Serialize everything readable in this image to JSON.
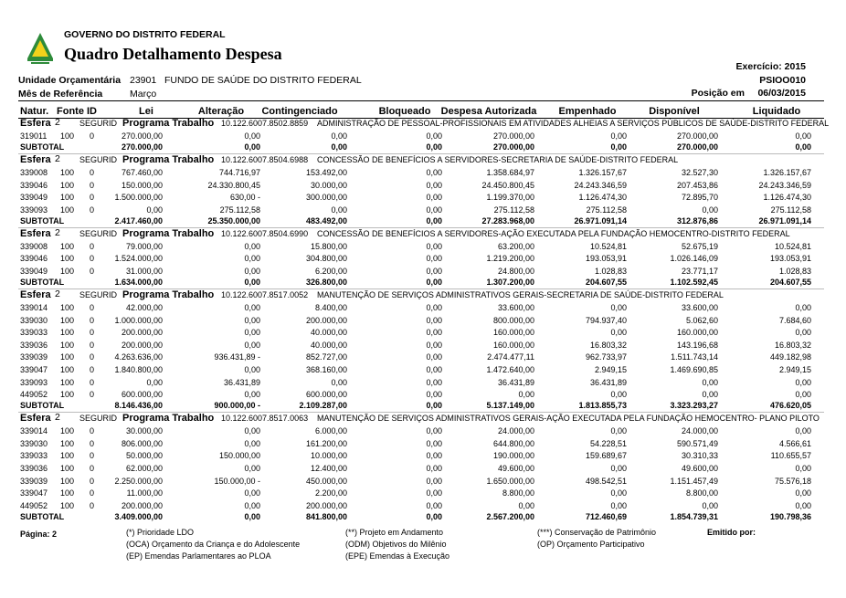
{
  "header": {
    "gov": "GOVERNO DO DISTRITO FEDERAL",
    "title": "Quadro Detalhamento Despesa",
    "exercicio": "Exercício: 2015",
    "codigo": "PSIOO010",
    "posicao_label": "Posição em",
    "posicao": "06/03/2015",
    "unidade_label": "Unidade Orçamentária",
    "unidade_codigo": "23901",
    "unidade_nome": "FUNDO DE SAÚDE DO DISTRITO FEDERAL",
    "mes_label": "Mês de Referência",
    "mes": "Março"
  },
  "columns": [
    "Natur.",
    "Fonte",
    "ID",
    "Lei",
    "Alteração",
    "Contingenciado",
    "Bloqueado",
    "Despesa Autorizada",
    "Empenhado",
    "Disponível",
    "Liquidado"
  ],
  "sections": [
    {
      "esfera_label": "Esfera",
      "esfera": "2",
      "seg": "SEGURID",
      "prog_label": "Programa Trabalho",
      "codigo": "10.122.6007.8502.8859",
      "descricao": "ADMINISTRAÇÃO DE PESSOAL-PROFISSIONAIS EM ATIVIDADES ALHEIAS A SERVIÇOS PÚBLICOS DE SAÚDE-DISTRITO FEDERAL",
      "rows": [
        [
          "319011",
          "100",
          "0",
          "270.000,00",
          "0,00",
          "0,00",
          "0,00",
          "270.000,00",
          "0,00",
          "270.000,00",
          "0,00"
        ]
      ],
      "subtotal": {
        "label": "SUBTOTAL",
        "values": [
          "270.000,00",
          "0,00",
          "0,00",
          "0,00",
          "270.000,00",
          "0,00",
          "270.000,00",
          "0,00"
        ]
      }
    },
    {
      "esfera_label": "Esfera",
      "esfera": "2",
      "seg": "SEGURID",
      "prog_label": "Programa Trabalho",
      "codigo": "10.122.6007.8504.6988",
      "descricao": "CONCESSÃO DE BENEFÍCIOS A SERVIDORES-SECRETARIA DE SAÚDE-DISTRITO FEDERAL",
      "rows": [
        [
          "339008",
          "100",
          "0",
          "767.460,00",
          "744.716,97",
          "153.492,00",
          "0,00",
          "1.358.684,97",
          "1.326.157,67",
          "32.527,30",
          "1.326.157,67"
        ],
        [
          "339046",
          "100",
          "0",
          "150.000,00",
          "24.330.800,45",
          "30.000,00",
          "0,00",
          "24.450.800,45",
          "24.243.346,59",
          "207.453,86",
          "24.243.346,59"
        ],
        [
          "339049",
          "100",
          "0",
          "1.500.000,00",
          "630,00 -",
          "300.000,00",
          "0,00",
          "1.199.370,00",
          "1.126.474,30",
          "72.895,70",
          "1.126.474,30"
        ],
        [
          "339093",
          "100",
          "0",
          "0,00",
          "275.112,58",
          "0,00",
          "0,00",
          "275.112,58",
          "275.112,58",
          "0,00",
          "275.112,58"
        ]
      ],
      "subtotal": {
        "label": "SUBTOTAL",
        "values": [
          "2.417.460,00",
          "25.350.000,00",
          "483.492,00",
          "0,00",
          "27.283.968,00",
          "26.971.091,14",
          "312.876,86",
          "26.971.091,14"
        ]
      }
    },
    {
      "esfera_label": "Esfera",
      "esfera": "2",
      "seg": "SEGURID",
      "prog_label": "Programa Trabalho",
      "codigo": "10.122.6007.8504.6990",
      "descricao": "CONCESSÃO DE BENEFÍCIOS A SERVIDORES-AÇÃO EXECUTADA PELA FUNDAÇÃO HEMOCENTRO-DISTRITO FEDERAL",
      "rows": [
        [
          "339008",
          "100",
          "0",
          "79.000,00",
          "0,00",
          "15.800,00",
          "0,00",
          "63.200,00",
          "10.524,81",
          "52.675,19",
          "10.524,81"
        ],
        [
          "339046",
          "100",
          "0",
          "1.524.000,00",
          "0,00",
          "304.800,00",
          "0,00",
          "1.219.200,00",
          "193.053,91",
          "1.026.146,09",
          "193.053,91"
        ],
        [
          "339049",
          "100",
          "0",
          "31.000,00",
          "0,00",
          "6.200,00",
          "0,00",
          "24.800,00",
          "1.028,83",
          "23.771,17",
          "1.028,83"
        ]
      ],
      "subtotal": {
        "label": "SUBTOTAL",
        "values": [
          "1.634.000,00",
          "0,00",
          "326.800,00",
          "0,00",
          "1.307.200,00",
          "204.607,55",
          "1.102.592,45",
          "204.607,55"
        ]
      }
    },
    {
      "esfera_label": "Esfera",
      "esfera": "2",
      "seg": "SEGURID",
      "prog_label": "Programa Trabalho",
      "codigo": "10.122.6007.8517.0052",
      "descricao": "MANUTENÇÃO DE SERVIÇOS ADMINISTRATIVOS GERAIS-SECRETARIA DE SAÚDE-DISTRITO FEDERAL",
      "rows": [
        [
          "339014",
          "100",
          "0",
          "42.000,00",
          "0,00",
          "8.400,00",
          "0,00",
          "33.600,00",
          "0,00",
          "33.600,00",
          "0,00"
        ],
        [
          "339030",
          "100",
          "0",
          "1.000.000,00",
          "0,00",
          "200.000,00",
          "0,00",
          "800.000,00",
          "794.937,40",
          "5.062,60",
          "7.684,60"
        ],
        [
          "339033",
          "100",
          "0",
          "200.000,00",
          "0,00",
          "40.000,00",
          "0,00",
          "160.000,00",
          "0,00",
          "160.000,00",
          "0,00"
        ],
        [
          "339036",
          "100",
          "0",
          "200.000,00",
          "0,00",
          "40.000,00",
          "0,00",
          "160.000,00",
          "16.803,32",
          "143.196,68",
          "16.803,32"
        ],
        [
          "339039",
          "100",
          "0",
          "4.263.636,00",
          "936.431,89 -",
          "852.727,00",
          "0,00",
          "2.474.477,11",
          "962.733,97",
          "1.511.743,14",
          "449.182,98"
        ],
        [
          "339047",
          "100",
          "0",
          "1.840.800,00",
          "0,00",
          "368.160,00",
          "0,00",
          "1.472.640,00",
          "2.949,15",
          "1.469.690,85",
          "2.949,15"
        ],
        [
          "339093",
          "100",
          "0",
          "0,00",
          "36.431,89",
          "0,00",
          "0,00",
          "36.431,89",
          "36.431,89",
          "0,00",
          "0,00"
        ],
        [
          "449052",
          "100",
          "0",
          "600.000,00",
          "0,00",
          "600.000,00",
          "0,00",
          "0,00",
          "0,00",
          "0,00",
          "0,00"
        ]
      ],
      "subtotal": {
        "label": "SUBTOTAL",
        "values": [
          "8.146.436,00",
          "900.000,00 -",
          "2.109.287,00",
          "0,00",
          "5.137.149,00",
          "1.813.855,73",
          "3.323.293,27",
          "476.620,05"
        ]
      }
    },
    {
      "esfera_label": "Esfera",
      "esfera": "2",
      "seg": "SEGURID",
      "prog_label": "Programa Trabalho",
      "codigo": "10.122.6007.8517.0063",
      "descricao": "MANUTENÇÃO DE SERVIÇOS ADMINISTRATIVOS GERAIS-AÇÃO EXECUTADA PELA FUNDAÇÃO HEMOCENTRO- PLANO PILOTO",
      "rows": [
        [
          "339014",
          "100",
          "0",
          "30.000,00",
          "0,00",
          "6.000,00",
          "0,00",
          "24.000,00",
          "0,00",
          "24.000,00",
          "0,00"
        ],
        [
          "339030",
          "100",
          "0",
          "806.000,00",
          "0,00",
          "161.200,00",
          "0,00",
          "644.800,00",
          "54.228,51",
          "590.571,49",
          "4.566,61"
        ],
        [
          "339033",
          "100",
          "0",
          "50.000,00",
          "150.000,00",
          "10.000,00",
          "0,00",
          "190.000,00",
          "159.689,67",
          "30.310,33",
          "110.655,57"
        ],
        [
          "339036",
          "100",
          "0",
          "62.000,00",
          "0,00",
          "12.400,00",
          "0,00",
          "49.600,00",
          "0,00",
          "49.600,00",
          "0,00"
        ],
        [
          "339039",
          "100",
          "0",
          "2.250.000,00",
          "150.000,00 -",
          "450.000,00",
          "0,00",
          "1.650.000,00",
          "498.542,51",
          "1.151.457,49",
          "75.576,18"
        ],
        [
          "339047",
          "100",
          "0",
          "11.000,00",
          "0,00",
          "2.200,00",
          "0,00",
          "8.800,00",
          "0,00",
          "8.800,00",
          "0,00"
        ],
        [
          "449052",
          "100",
          "0",
          "200.000,00",
          "0,00",
          "200.000,00",
          "0,00",
          "0,00",
          "0,00",
          "0,00",
          "0,00"
        ]
      ],
      "subtotal": {
        "label": "SUBTOTAL",
        "values": [
          "3.409.000,00",
          "0,00",
          "841.800,00",
          "0,00",
          "2.567.200,00",
          "712.460,69",
          "1.854.739,31",
          "190.798,36"
        ]
      }
    }
  ],
  "footer": {
    "pagina": "Página: 2",
    "emitido": "Emitido por:",
    "legend": [
      [
        "(*) Prioridade LDO",
        "(**) Projeto em Andamento",
        "(***) Conservação de Patrimônio"
      ],
      [
        "(OCA) Orçamento da Criança e do Adolescente",
        "(ODM) Objetivos do Milênio",
        "(OP) Orçamento Participativo"
      ],
      [
        "(EP) Emendas Parlamentares ao PLOA",
        "(EPE) Emendas à Execução"
      ]
    ]
  }
}
